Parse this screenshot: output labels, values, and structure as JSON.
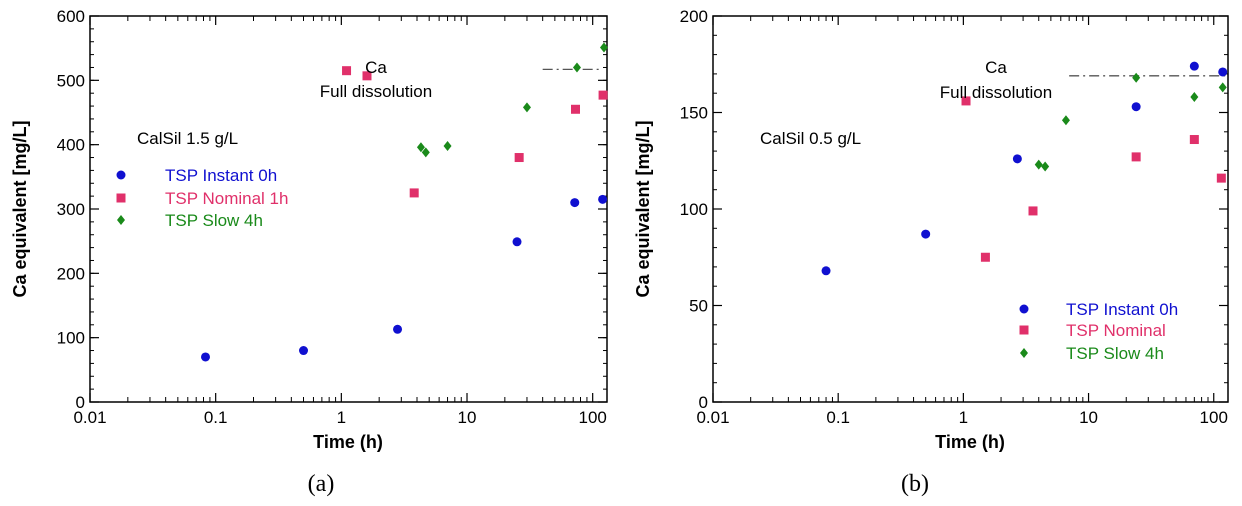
{
  "colors": {
    "instant": "#1010d0",
    "nominal": "#e0306a",
    "slow": "#1a8a1a",
    "axis": "#000000",
    "refline": "#555555"
  },
  "chart_data": [
    {
      "type": "scatter",
      "panel_label": "(a)",
      "xscale": "log",
      "xlim": [
        0.01,
        130
      ],
      "ylim": [
        0,
        600
      ],
      "xticks": [
        0.01,
        0.1,
        1,
        10,
        100
      ],
      "xtick_labels": [
        "0.01",
        "0.1",
        "1",
        "10",
        "100"
      ],
      "yticks": [
        0,
        100,
        200,
        300,
        400,
        500,
        600
      ],
      "ytick_labels": [
        "0",
        "100",
        "200",
        "300",
        "400",
        "500",
        "600"
      ],
      "xlabel": "Time (h)",
      "ylabel": "Ca equivalent [mg/L]",
      "annotation_condition": "CalSil 1.5 g/L",
      "annotation_ref_line1": "Ca",
      "annotation_ref_line2": "Full dissolution",
      "reference_line": {
        "y": 517,
        "x_from": 40,
        "x_to": 120
      },
      "legend_position": "left",
      "series": [
        {
          "name": "TSP Instant 0h",
          "marker": "circle",
          "color": "#1010d0",
          "x": [
            0.083,
            0.5,
            2.8,
            25,
            72,
            120
          ],
          "y": [
            70,
            80,
            113,
            249,
            310,
            315
          ]
        },
        {
          "name": "TSP Nominal 1h",
          "marker": "square",
          "color": "#e0306a",
          "x": [
            1.1,
            1.6,
            3.8,
            26,
            73,
            121
          ],
          "y": [
            515,
            507,
            325,
            380,
            455,
            477
          ]
        },
        {
          "name": "TSP Slow 4h",
          "marker": "diamond",
          "color": "#1a8a1a",
          "x": [
            4.3,
            4.7,
            7,
            30,
            75,
            123
          ],
          "y": [
            396,
            388,
            398,
            458,
            520,
            551
          ]
        }
      ]
    },
    {
      "type": "scatter",
      "panel_label": "(b)",
      "xscale": "log",
      "xlim": [
        0.01,
        130
      ],
      "ylim": [
        0,
        200
      ],
      "xticks": [
        0.01,
        0.1,
        1,
        10,
        100
      ],
      "xtick_labels": [
        "0.01",
        "0.1",
        "1",
        "10",
        "100"
      ],
      "yticks": [
        0,
        50,
        100,
        150,
        200
      ],
      "ytick_labels": [
        "0",
        "50",
        "100",
        "150",
        "200"
      ],
      "xlabel": "Time (h)",
      "ylabel": "Ca equivalent [mg/L]",
      "annotation_condition": "CalSil 0.5 g/L",
      "annotation_ref_line1": "Ca",
      "annotation_ref_line2": "Full dissolution",
      "reference_line": {
        "y": 169,
        "x_from": 7,
        "x_to": 130
      },
      "legend_position": "bottom-right",
      "series": [
        {
          "name": "TSP Instant 0h",
          "marker": "circle",
          "color": "#1010d0",
          "x": [
            0.08,
            0.5,
            2.7,
            24,
            70,
            118
          ],
          "y": [
            68,
            87,
            126,
            153,
            174,
            171
          ]
        },
        {
          "name": "TSP Nominal",
          "marker": "square",
          "color": "#e0306a",
          "x": [
            1.05,
            1.5,
            3.6,
            24,
            70,
            115
          ],
          "y": [
            156,
            75,
            99,
            127,
            136,
            116
          ]
        },
        {
          "name": "TSP Slow 4h",
          "marker": "diamond",
          "color": "#1a8a1a",
          "x": [
            4,
            4.5,
            6.6,
            24,
            70,
            118
          ],
          "y": [
            123,
            122,
            146,
            168,
            158,
            163
          ]
        }
      ]
    }
  ]
}
